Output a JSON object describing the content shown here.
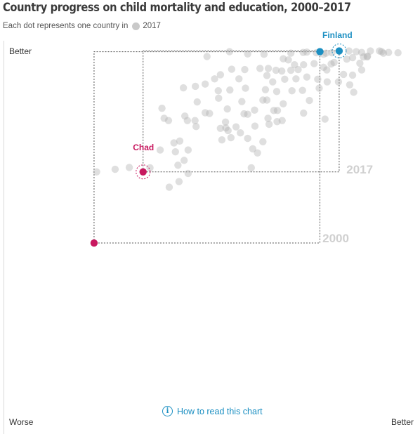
{
  "title": "Country progress on child mortality and education, 2000–2017",
  "subtitle": {
    "text": "Each dot represents one country in",
    "legend_label": "2017"
  },
  "axis_labels": {
    "top_left": "Better",
    "bottom_left": "Worse",
    "bottom_right": "Better"
  },
  "read_link": "How to read this chart",
  "colors": {
    "chad": "#c8185f",
    "finland": "#1b8fc2",
    "country_dot": "#b3b3b3",
    "guide_line": "#555555",
    "year_label": "#d0d0d0"
  },
  "chart_data": {
    "type": "scatter",
    "x_range": [
      0,
      100
    ],
    "y_range": [
      0,
      100
    ],
    "highlights": [
      {
        "country": "Chad",
        "points": [
          {
            "year": "2000",
            "x": 14.3,
            "y": 44.9
          },
          {
            "year": "2017",
            "x": 27.8,
            "y": 64.0
          }
        ]
      },
      {
        "country": "Finland",
        "points": [
          {
            "year": "2000",
            "x": 76.5,
            "y": 96.3
          },
          {
            "year": "2017",
            "x": 81.8,
            "y": 96.5
          }
        ]
      }
    ],
    "year_labels": [
      {
        "text": "2017",
        "x": 83.8,
        "y": 63.6
      },
      {
        "text": "2000",
        "x": 77.2,
        "y": 45.1
      },
      {
        "text": "Chad",
        "x": 27.9,
        "y": 69.8
      },
      {
        "text": "Finland",
        "x": 81.3,
        "y": 100
      }
    ],
    "countries_2017": [
      [
        90.4,
        96.5
      ],
      [
        92.9,
        96.5
      ],
      [
        95.4,
        96.1
      ],
      [
        98.0,
        96.0
      ],
      [
        93.5,
        96.3
      ],
      [
        88.0,
        96.1
      ],
      [
        86.5,
        96.3
      ],
      [
        84.5,
        96.5
      ],
      [
        85.5,
        94.7
      ],
      [
        88.5,
        94.9
      ],
      [
        83.9,
        94.3
      ],
      [
        87.5,
        93.2
      ],
      [
        89.5,
        94.9
      ],
      [
        80.4,
        93.4
      ],
      [
        79.8,
        96.0
      ],
      [
        78.2,
        95.9
      ],
      [
        77.5,
        95.6
      ],
      [
        75.5,
        96.0
      ],
      [
        72.9,
        96.2
      ],
      [
        71.9,
        96.1
      ],
      [
        68.5,
        95.9
      ],
      [
        66.4,
        94.4
      ],
      [
        67.8,
        94.1
      ],
      [
        69.5,
        92.8
      ],
      [
        72.0,
        92.8
      ],
      [
        74.9,
        93.1
      ],
      [
        77.5,
        92.1
      ],
      [
        78.4,
        91.4
      ],
      [
        79.6,
        93.0
      ],
      [
        83.0,
        90.2
      ],
      [
        85.5,
        90.0
      ],
      [
        88.0,
        91.4
      ],
      [
        70.5,
        91.5
      ],
      [
        68.5,
        91.3
      ],
      [
        66.0,
        91.1
      ],
      [
        64.4,
        91.3
      ],
      [
        62.3,
        91.8
      ],
      [
        60.0,
        91.8
      ],
      [
        55.8,
        91.5
      ],
      [
        52.2,
        91.6
      ],
      [
        49.1,
        90.1
      ],
      [
        47.5,
        89.0
      ],
      [
        66.8,
        88.9
      ],
      [
        63.5,
        88.2
      ],
      [
        61.9,
        89.9
      ],
      [
        69.9,
        89.0
      ],
      [
        72.9,
        89.5
      ],
      [
        75.9,
        88.9
      ],
      [
        78.5,
        88.2
      ],
      [
        81.6,
        88.2
      ],
      [
        84.7,
        87.4
      ],
      [
        89.6,
        95.1
      ],
      [
        94.0,
        95.9
      ],
      [
        45.4,
        95.0
      ],
      [
        51.6,
        96.3
      ],
      [
        56.6,
        95.7
      ],
      [
        61.1,
        95.6
      ],
      [
        42.2,
        87.0
      ],
      [
        44.9,
        87.6
      ],
      [
        54.2,
        89.0
      ],
      [
        38.9,
        86.6
      ],
      [
        48.5,
        85.8
      ],
      [
        51.7,
        86.0
      ],
      [
        56.0,
        86.5
      ],
      [
        61.5,
        86.1
      ],
      [
        64.6,
        85.6
      ],
      [
        68.8,
        85.8
      ],
      [
        71.7,
        85.9
      ],
      [
        76.3,
        86.5
      ],
      [
        85.8,
        85.4
      ],
      [
        48.6,
        83.8
      ],
      [
        55.0,
        82.9
      ],
      [
        60.8,
        83.3
      ],
      [
        61.9,
        83.3
      ],
      [
        73.6,
        83.2
      ],
      [
        42.7,
        82.8
      ],
      [
        44.9,
        79.9
      ],
      [
        51.0,
        80.9
      ],
      [
        58.5,
        80.6
      ],
      [
        63.8,
        80.5
      ],
      [
        66.4,
        82.3
      ],
      [
        72.0,
        79.8
      ],
      [
        33.0,
        81.1
      ],
      [
        33.6,
        78.4
      ],
      [
        39.3,
        79.0
      ],
      [
        46.1,
        79.7
      ],
      [
        55.6,
        79.6
      ],
      [
        56.6,
        79.5
      ],
      [
        62.2,
        78.4
      ],
      [
        66.1,
        77.8
      ],
      [
        62.5,
        76.8
      ],
      [
        64.8,
        80.5
      ],
      [
        64.7,
        77.5
      ],
      [
        42.1,
        77.8
      ],
      [
        50.5,
        77.4
      ],
      [
        53.4,
        76.1
      ],
      [
        58.6,
        76.3
      ],
      [
        49.1,
        75.7
      ],
      [
        77.9,
        78.2
      ],
      [
        34.8,
        77.8
      ],
      [
        40.0,
        77.8
      ],
      [
        42.4,
        76.2
      ],
      [
        50.6,
        75.8
      ],
      [
        54.6,
        74.5
      ],
      [
        56.6,
        73.0
      ],
      [
        51.2,
        75.1
      ],
      [
        60.8,
        72.1
      ],
      [
        49.5,
        72.6
      ],
      [
        52.0,
        73.2
      ],
      [
        58.0,
        70.2
      ],
      [
        36.3,
        71.8
      ],
      [
        37.9,
        72.3
      ],
      [
        32.5,
        69.9
      ],
      [
        36.7,
        69.4
      ],
      [
        40.2,
        69.9
      ],
      [
        59.3,
        69.1
      ],
      [
        39.1,
        67.1
      ],
      [
        37.4,
        65.8
      ],
      [
        24.0,
        65.2
      ],
      [
        20.1,
        64.7
      ],
      [
        15.0,
        64.0
      ],
      [
        29.7,
        65.1
      ],
      [
        40.2,
        63.6
      ],
      [
        57.6,
        65.1
      ],
      [
        37.7,
        61.4
      ],
      [
        35.0,
        59.9
      ]
    ]
  }
}
